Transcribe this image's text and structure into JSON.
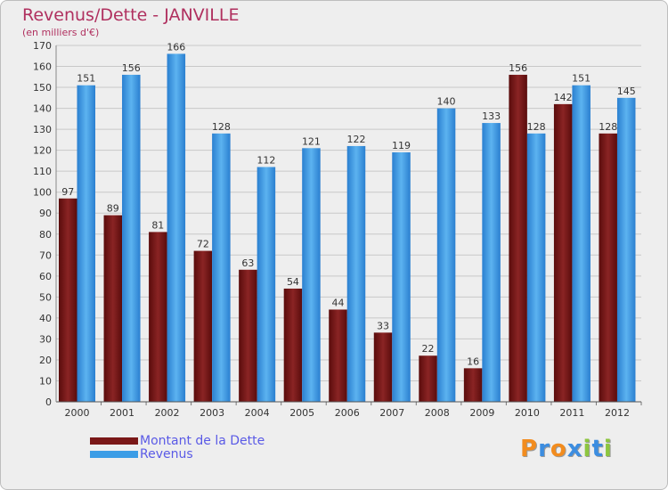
{
  "header": {
    "title": "Revenus/Dette - JANVILLE",
    "subtitle": "(en milliers d'€)"
  },
  "chart_data": {
    "type": "bar",
    "categories": [
      "2000",
      "2001",
      "2002",
      "2003",
      "2004",
      "2005",
      "2006",
      "2007",
      "2008",
      "2009",
      "2010",
      "2011",
      "2012"
    ],
    "series": [
      {
        "name": "Montant de la Dette",
        "color": "#7a1818",
        "values": [
          97,
          89,
          81,
          72,
          63,
          54,
          44,
          33,
          22,
          16,
          156,
          142,
          128
        ]
      },
      {
        "name": "Revenus",
        "color": "#3b9de6",
        "values": [
          151,
          156,
          166,
          128,
          112,
          121,
          122,
          119,
          140,
          133,
          128,
          151,
          145
        ]
      }
    ],
    "yticks": [
      0,
      10,
      20,
      30,
      40,
      50,
      60,
      70,
      80,
      90,
      100,
      110,
      120,
      130,
      140,
      150,
      160,
      170
    ],
    "ylim": [
      0,
      170
    ],
    "grid": true,
    "legend_position": "bottom-left"
  },
  "legend": {
    "items": [
      {
        "label": "Montant de la Dette",
        "color": "#7a1818"
      },
      {
        "label": "Revenus",
        "color": "#3b9de6"
      }
    ]
  },
  "logo": {
    "letters": [
      "P",
      "r",
      "o",
      "x",
      "i",
      "t",
      "i"
    ],
    "colors": [
      "#f28c1e",
      "#3c8de0",
      "#f28c1e",
      "#3c8de0",
      "#8dc63f",
      "#3c8de0",
      "#8dc63f"
    ]
  }
}
